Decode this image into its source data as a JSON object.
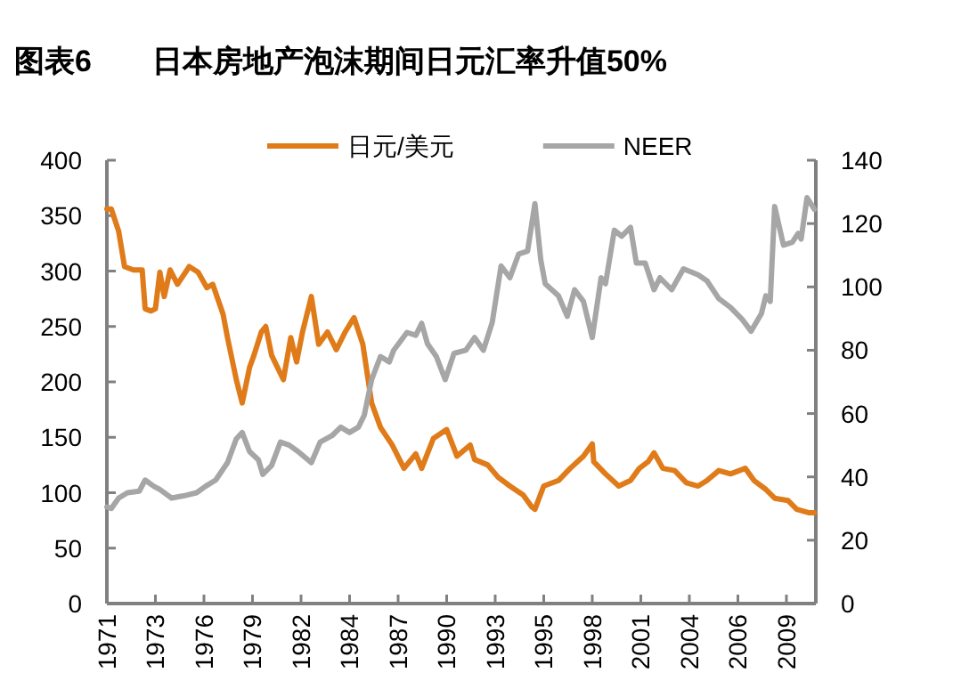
{
  "chart_data": {
    "type": "line",
    "title": "图表6　　日本房地产泡沫期间日元汇率升值50%",
    "xlim": [
      "1971-01",
      "2011-03"
    ],
    "xticks": [
      {
        "value": "1971-01",
        "label": "1971"
      },
      {
        "value": "1973-10",
        "label": "1973"
      },
      {
        "value": "1976-07",
        "label": "1976"
      },
      {
        "value": "1979-04",
        "label": "1979"
      },
      {
        "value": "1982-01",
        "label": "1982"
      },
      {
        "value": "1984-10",
        "label": "1984"
      },
      {
        "value": "1987-07",
        "label": "1987"
      },
      {
        "value": "1990-04",
        "label": "1990"
      },
      {
        "value": "1993-01",
        "label": "1993"
      },
      {
        "value": "1995-10",
        "label": "1995"
      },
      {
        "value": "1998-07",
        "label": "1998"
      },
      {
        "value": "2001-04",
        "label": "2001"
      },
      {
        "value": "2004-01",
        "label": "2004"
      },
      {
        "value": "2006-10",
        "label": "2006"
      },
      {
        "value": "2009-07",
        "label": "2009"
      }
    ],
    "ylim": [
      0,
      400
    ],
    "yticks": [
      0,
      50,
      100,
      150,
      200,
      250,
      300,
      350,
      400
    ],
    "y2lim": [
      0,
      140
    ],
    "y2ticks": [
      0,
      20,
      40,
      60,
      80,
      100,
      120,
      140
    ],
    "legend": "top",
    "grid": false,
    "series": [
      {
        "name": "日元/美元",
        "color": "#e07b1a",
        "axis": "y",
        "x": [
          "1971-01",
          "1971-04",
          "1971-09",
          "1972-01",
          "1972-07",
          "1973-01",
          "1973-03",
          "1973-07",
          "1973-10",
          "1974-01",
          "1974-04",
          "1974-08",
          "1975-01",
          "1975-09",
          "1976-03",
          "1976-09",
          "1977-01",
          "1977-08",
          "1977-11",
          "1978-05",
          "1978-09",
          "1979-02",
          "1979-05",
          "1979-10",
          "1980-01",
          "1980-05",
          "1981-01",
          "1981-06",
          "1981-10",
          "1982-02",
          "1982-08",
          "1983-01",
          "1983-07",
          "1984-01",
          "1984-07",
          "1985-01",
          "1985-07",
          "1986-01",
          "1986-07",
          "1987-03",
          "1987-11",
          "1988-07",
          "1988-11",
          "1989-07",
          "1990-04",
          "1990-11",
          "1991-08",
          "1991-11",
          "1992-08",
          "1993-03",
          "1993-11",
          "1994-08",
          "1995-02",
          "1995-04",
          "1995-10",
          "1996-08",
          "1997-04",
          "1998-01",
          "1998-07",
          "1998-08",
          "1999-04",
          "2000-01",
          "2000-09",
          "2001-03",
          "2001-09",
          "2002-01",
          "2002-07",
          "2003-03",
          "2003-11",
          "2004-07",
          "2005-01",
          "2005-09",
          "2006-05",
          "2007-03",
          "2007-09",
          "2008-05",
          "2008-11",
          "2009-08",
          "2010-02",
          "2010-10",
          "2011-02"
        ],
        "values": [
          356,
          356,
          336,
          304,
          301,
          301,
          266,
          264,
          266,
          299,
          277,
          301,
          288,
          304,
          299,
          285,
          288,
          261,
          240,
          202,
          181,
          213,
          224,
          245,
          250,
          224,
          202,
          240,
          218,
          245,
          277,
          234,
          245,
          229,
          245,
          258,
          234,
          181,
          159,
          143,
          122,
          135,
          122,
          149,
          157,
          133,
          143,
          130,
          125,
          114,
          106,
          98,
          87,
          85,
          106,
          111,
          122,
          133,
          144,
          128,
          117,
          106,
          111,
          122,
          128,
          136,
          122,
          120,
          109,
          106,
          111,
          120,
          117,
          122,
          111,
          103,
          95,
          93,
          85,
          82,
          82
        ]
      },
      {
        "name": "NEER",
        "color": "#a6a6a6",
        "axis": "y2",
        "x": [
          "1971-01",
          "1971-04",
          "1971-09",
          "1972-03",
          "1972-11",
          "1973-03",
          "1973-09",
          "1974-01",
          "1974-09",
          "1975-05",
          "1976-02",
          "1976-08",
          "1977-03",
          "1977-11",
          "1978-05",
          "1978-09",
          "1979-02",
          "1979-08",
          "1979-11",
          "1980-05",
          "1980-11",
          "1981-05",
          "1981-11",
          "1982-08",
          "1983-02",
          "1983-10",
          "1984-04",
          "1984-10",
          "1985-04",
          "1985-08",
          "1986-01",
          "1986-07",
          "1987-01",
          "1987-04",
          "1988-01",
          "1988-07",
          "1988-11",
          "1989-03",
          "1989-09",
          "1990-03",
          "1990-09",
          "1991-05",
          "1991-11",
          "1992-05",
          "1992-11",
          "1993-05",
          "1993-11",
          "1994-05",
          "1994-11",
          "1995-04",
          "1995-08",
          "1995-11",
          "1996-08",
          "1997-02",
          "1997-07",
          "1998-01",
          "1998-07",
          "1999-01",
          "1999-04",
          "1999-10",
          "2000-03",
          "2000-09",
          "2001-01",
          "2001-07",
          "2002-01",
          "2002-05",
          "2003-01",
          "2003-09",
          "2004-07",
          "2005-01",
          "2005-09",
          "2006-05",
          "2007-01",
          "2007-07",
          "2008-02",
          "2008-05",
          "2008-08",
          "2008-11",
          "2009-05",
          "2009-11",
          "2010-03",
          "2010-05",
          "2010-09",
          "2011-02"
        ],
        "values": [
          30.5,
          30,
          33.3,
          35,
          35.5,
          39,
          37,
          36,
          33.3,
          34,
          35,
          37,
          39,
          44.5,
          52,
          54,
          48,
          45.4,
          40.8,
          43.6,
          51,
          50,
          48,
          44.5,
          51,
          53,
          55.7,
          54,
          55.7,
          59.5,
          70.7,
          78,
          76.3,
          80,
          85.6,
          84.7,
          88.5,
          82,
          78,
          70.7,
          79,
          80,
          84,
          80,
          88.8,
          106.6,
          102.9,
          110.4,
          111.3,
          126.3,
          108.5,
          101,
          97.2,
          90.7,
          99.1,
          95.4,
          84,
          102.9,
          101,
          117.9,
          116,
          118.8,
          107.5,
          107.5,
          99.1,
          102.9,
          99.1,
          105.7,
          103.8,
          101.9,
          96.3,
          93.5,
          89.7,
          86,
          91.6,
          97.2,
          95.4,
          125.4,
          113.2,
          114.1,
          116.9,
          115.1,
          128.2,
          124.5
        ]
      }
    ]
  }
}
